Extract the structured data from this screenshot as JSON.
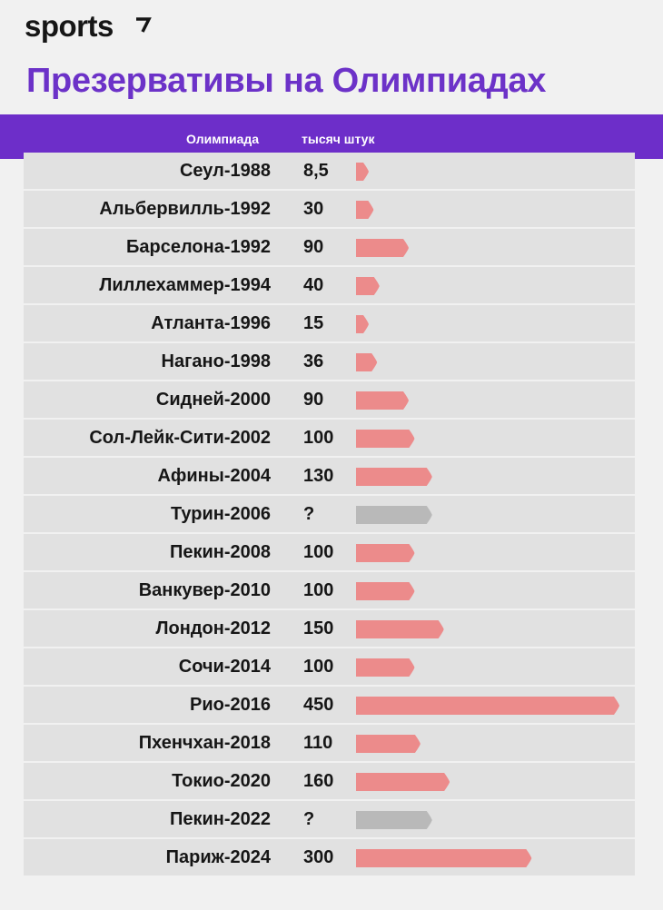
{
  "brand": {
    "logo_text": "sports"
  },
  "colors": {
    "accent": "#6d2ec9",
    "title": "#6c32c8",
    "bar": "#ec8b8b",
    "bar_unknown": "#b9b9b9",
    "row_bg": "#e1e1e1",
    "page_bg": "#f1f1f1"
  },
  "header": {
    "title": "Презервативы на Олимпиадах",
    "col_name": "Олимпиада",
    "col_value": "тысяч штук"
  },
  "chart_data": {
    "type": "bar",
    "orientation": "horizontal",
    "title": "Презервативы на Олимпиадах",
    "unit": "тысяч штук",
    "unknown_bar_value": 130,
    "rows": [
      {
        "label": "Сеул-1988",
        "display": "8,5",
        "value": 8.5,
        "known": true
      },
      {
        "label": "Альбервилль-1992",
        "display": "30",
        "value": 30,
        "known": true
      },
      {
        "label": "Барселона-1992",
        "display": "90",
        "value": 90,
        "known": true
      },
      {
        "label": "Лиллехаммер-1994",
        "display": "40",
        "value": 40,
        "known": true
      },
      {
        "label": "Атланта-1996",
        "display": "15",
        "value": 15,
        "known": true
      },
      {
        "label": "Нагано-1998",
        "display": "36",
        "value": 36,
        "known": true
      },
      {
        "label": "Сидней-2000",
        "display": "90",
        "value": 90,
        "known": true
      },
      {
        "label": "Сол-Лейк-Сити-2002",
        "display": "100",
        "value": 100,
        "known": true
      },
      {
        "label": "Афины-2004",
        "display": "130",
        "value": 130,
        "known": true
      },
      {
        "label": "Турин-2006",
        "display": "?",
        "value": null,
        "known": false
      },
      {
        "label": "Пекин-2008",
        "display": "100",
        "value": 100,
        "known": true
      },
      {
        "label": "Ванкувер-2010",
        "display": "100",
        "value": 100,
        "known": true
      },
      {
        "label": "Лондон-2012",
        "display": "150",
        "value": 150,
        "known": true
      },
      {
        "label": "Сочи-2014",
        "display": "100",
        "value": 100,
        "known": true
      },
      {
        "label": "Рио-2016",
        "display": "450",
        "value": 450,
        "known": true
      },
      {
        "label": "Пхенчхан-2018",
        "display": "110",
        "value": 110,
        "known": true
      },
      {
        "label": "Токио-2020",
        "display": "160",
        "value": 160,
        "known": true
      },
      {
        "label": "Пекин-2022",
        "display": "?",
        "value": null,
        "known": false
      },
      {
        "label": "Париж-2024",
        "display": "300",
        "value": 300,
        "known": true
      }
    ]
  }
}
